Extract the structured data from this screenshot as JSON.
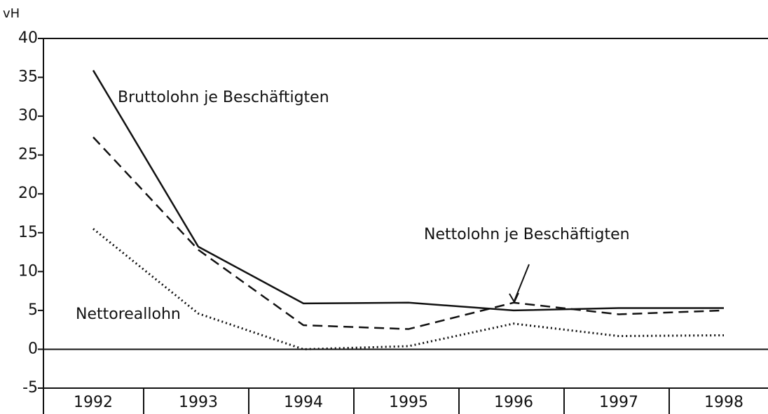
{
  "chart_data": {
    "type": "line",
    "y_label": "vH",
    "categories": [
      "1992",
      "1993",
      "1994",
      "1995",
      "1996",
      "1997",
      "1998"
    ],
    "ylim": [
      -5,
      40
    ],
    "yticks": [
      -5,
      0,
      5,
      10,
      15,
      20,
      25,
      30,
      35,
      40
    ],
    "series": [
      {
        "name": "Bruttolohn je Beschäftigten",
        "color": "#111111",
        "style": "solid",
        "values": [
          35.9,
          13.2,
          5.9,
          6.0,
          5.0,
          5.3,
          5.3
        ]
      },
      {
        "name": "Nettolohn je Beschäftigten",
        "color": "#111111",
        "style": "dashed",
        "values": [
          27.3,
          12.8,
          3.1,
          2.6,
          6.0,
          4.5,
          5.0
        ]
      },
      {
        "name": "Nettoreallohn",
        "color": "#111111",
        "style": "dotted",
        "values": [
          15.5,
          4.6,
          0,
          0.4,
          3.3,
          1.7,
          1.8
        ]
      }
    ]
  }
}
